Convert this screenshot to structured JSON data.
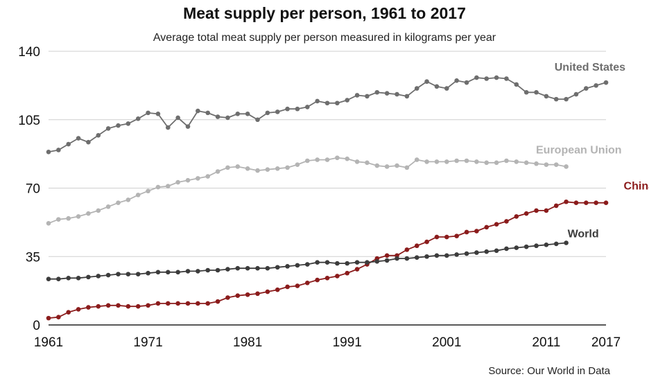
{
  "chart_data": {
    "type": "line",
    "title": "Meat supply per person, 1961 to 2017",
    "subtitle": "Average total meat supply per person measured in kilograms per year",
    "source": "Source: Our World in Data",
    "xlabel": "",
    "ylabel": "",
    "xlim": [
      1961,
      2017
    ],
    "ylim": [
      0,
      140
    ],
    "x_ticks": [
      1961,
      1971,
      1981,
      1991,
      2001,
      2011,
      2017
    ],
    "y_ticks": [
      0,
      35,
      70,
      105,
      140
    ],
    "grid": true,
    "series": [
      {
        "name": "United States",
        "color": "#6e6e6e",
        "x": [
          1961,
          1962,
          1963,
          1964,
          1965,
          1966,
          1967,
          1968,
          1969,
          1970,
          1971,
          1972,
          1973,
          1974,
          1975,
          1976,
          1977,
          1978,
          1979,
          1980,
          1981,
          1982,
          1983,
          1984,
          1985,
          1986,
          1987,
          1988,
          1989,
          1990,
          1991,
          1992,
          1993,
          1994,
          1995,
          1996,
          1997,
          1998,
          1999,
          2000,
          2001,
          2002,
          2003,
          2004,
          2005,
          2006,
          2007,
          2008,
          2009,
          2010,
          2011,
          2012,
          2013,
          2014,
          2015,
          2016,
          2017
        ],
        "y": [
          88.5,
          89.5,
          92.5,
          95.5,
          93.5,
          97,
          100.5,
          102,
          103,
          105.5,
          108.5,
          108,
          101,
          106,
          101.5,
          109.5,
          108.5,
          106.5,
          106,
          108,
          108,
          105,
          108.5,
          109,
          110.5,
          110.5,
          111.5,
          114.5,
          113.5,
          113.5,
          115,
          117.5,
          117,
          119,
          118.5,
          118,
          117,
          121,
          124.5,
          122,
          121,
          125,
          124,
          126.5,
          126,
          126.5,
          126,
          123,
          119,
          119,
          117,
          115.5,
          115.5,
          118,
          121,
          122.5,
          124
        ]
      },
      {
        "name": "European Union",
        "color": "#b4b4b4",
        "x": [
          1961,
          1962,
          1963,
          1964,
          1965,
          1966,
          1967,
          1968,
          1969,
          1970,
          1971,
          1972,
          1973,
          1974,
          1975,
          1976,
          1977,
          1978,
          1979,
          1980,
          1981,
          1982,
          1983,
          1984,
          1985,
          1986,
          1987,
          1988,
          1989,
          1990,
          1991,
          1992,
          1993,
          1994,
          1995,
          1996,
          1997,
          1998,
          1999,
          2000,
          2001,
          2002,
          2003,
          2004,
          2005,
          2006,
          2007,
          2008,
          2009,
          2010,
          2011,
          2012,
          2013
        ],
        "y": [
          52,
          54,
          54.5,
          55.5,
          57,
          58.5,
          60.5,
          62.5,
          64,
          66.5,
          68.5,
          70.5,
          71,
          73,
          74,
          75,
          76,
          78.5,
          80.5,
          81,
          80,
          79,
          79.5,
          80,
          80.5,
          82,
          84,
          84.5,
          84.5,
          85.5,
          85,
          83.5,
          83,
          81.5,
          81,
          81.5,
          80.5,
          84.5,
          83.5,
          83.5,
          83.5,
          84,
          84,
          83.5,
          83,
          83,
          84,
          83.5,
          83,
          82.5,
          82,
          82,
          81
        ]
      },
      {
        "name": "China",
        "color": "#8b1c1c",
        "x": [
          1961,
          1962,
          1963,
          1964,
          1965,
          1966,
          1967,
          1968,
          1969,
          1970,
          1971,
          1972,
          1973,
          1974,
          1975,
          1976,
          1977,
          1978,
          1979,
          1980,
          1981,
          1982,
          1983,
          1984,
          1985,
          1986,
          1987,
          1988,
          1989,
          1990,
          1991,
          1992,
          1993,
          1994,
          1995,
          1996,
          1997,
          1998,
          1999,
          2000,
          2001,
          2002,
          2003,
          2004,
          2005,
          2006,
          2007,
          2008,
          2009,
          2010,
          2011,
          2012,
          2013,
          2014,
          2015,
          2016,
          2017
        ],
        "y": [
          3.5,
          4,
          6.5,
          8,
          9,
          9.5,
          10,
          10,
          9.5,
          9.5,
          10,
          11,
          11,
          11,
          11,
          11,
          11,
          12,
          14,
          15,
          15.5,
          16,
          17,
          18,
          19.5,
          20,
          21.5,
          23,
          24,
          25,
          26.5,
          28.5,
          31,
          34,
          35.5,
          35.5,
          38.5,
          40.5,
          42.5,
          45,
          45,
          45.5,
          47.5,
          48,
          50,
          51.5,
          53,
          55.5,
          57,
          58.5,
          58.5,
          61,
          63,
          62.5,
          62.5,
          62.5,
          62.5
        ]
      },
      {
        "name": "World",
        "color": "#3c3c3c",
        "x": [
          1961,
          1962,
          1963,
          1964,
          1965,
          1966,
          1967,
          1968,
          1969,
          1970,
          1971,
          1972,
          1973,
          1974,
          1975,
          1976,
          1977,
          1978,
          1979,
          1980,
          1981,
          1982,
          1983,
          1984,
          1985,
          1986,
          1987,
          1988,
          1989,
          1990,
          1991,
          1992,
          1993,
          1994,
          1995,
          1996,
          1997,
          1998,
          1999,
          2000,
          2001,
          2002,
          2003,
          2004,
          2005,
          2006,
          2007,
          2008,
          2009,
          2010,
          2011,
          2012,
          2013
        ],
        "y": [
          23.5,
          23.5,
          24,
          24,
          24.5,
          25,
          25.5,
          26,
          26,
          26,
          26.5,
          27,
          27,
          27,
          27.5,
          27.5,
          28,
          28,
          28.5,
          29,
          29,
          29,
          29,
          29.5,
          30,
          30.5,
          31,
          32,
          32,
          31.5,
          31.5,
          32,
          32,
          32.5,
          33,
          34,
          34,
          34.5,
          35,
          35.5,
          35.5,
          36,
          36.5,
          37,
          37.5,
          38,
          39,
          39.5,
          40,
          40.5,
          41,
          41.5,
          42
        ]
      }
    ]
  }
}
